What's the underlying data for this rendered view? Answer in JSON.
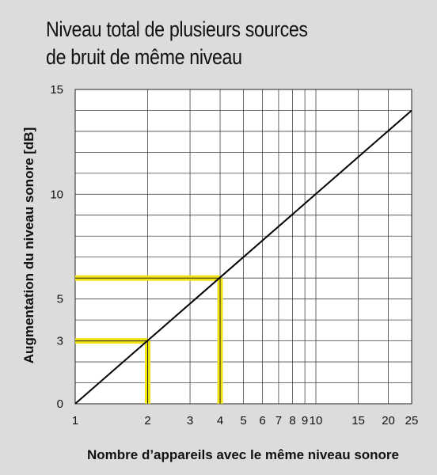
{
  "chart_data": {
    "type": "line",
    "title_line1": "Niveau total de plusieurs sources",
    "title_line2": "de bruit de même niveau",
    "xlabel": "Nombre d’appareils avec le même niveau sonore",
    "ylabel": "Augmentation du niveau sonore [dB]",
    "x_scale": "log",
    "xlim": [
      1,
      25
    ],
    "ylim": [
      0,
      15
    ],
    "grid": true,
    "x_ticks": [
      1,
      2,
      3,
      4,
      5,
      6,
      7,
      8,
      9,
      10,
      15,
      20,
      25
    ],
    "x_tick_labels": [
      "1",
      "2",
      "3",
      "4",
      "5",
      "6",
      "7",
      "8",
      "9",
      "10",
      "15",
      "20",
      "25"
    ],
    "y_grid": [
      0,
      1,
      2,
      3,
      4,
      5,
      6,
      7,
      8,
      9,
      10,
      11,
      12,
      13,
      14,
      15
    ],
    "y_ticks": [
      0,
      3,
      5,
      10,
      15
    ],
    "y_tick_labels": [
      "0",
      "3",
      "5",
      "10",
      "15"
    ],
    "series": [
      {
        "x": [
          1,
          25
        ],
        "y": [
          0,
          14
        ],
        "color": "#000000"
      }
    ],
    "highlights": [
      {
        "x": 2,
        "y": 3
      },
      {
        "x": 4,
        "y": 6
      }
    ],
    "highlight_color": "#f2e313"
  }
}
